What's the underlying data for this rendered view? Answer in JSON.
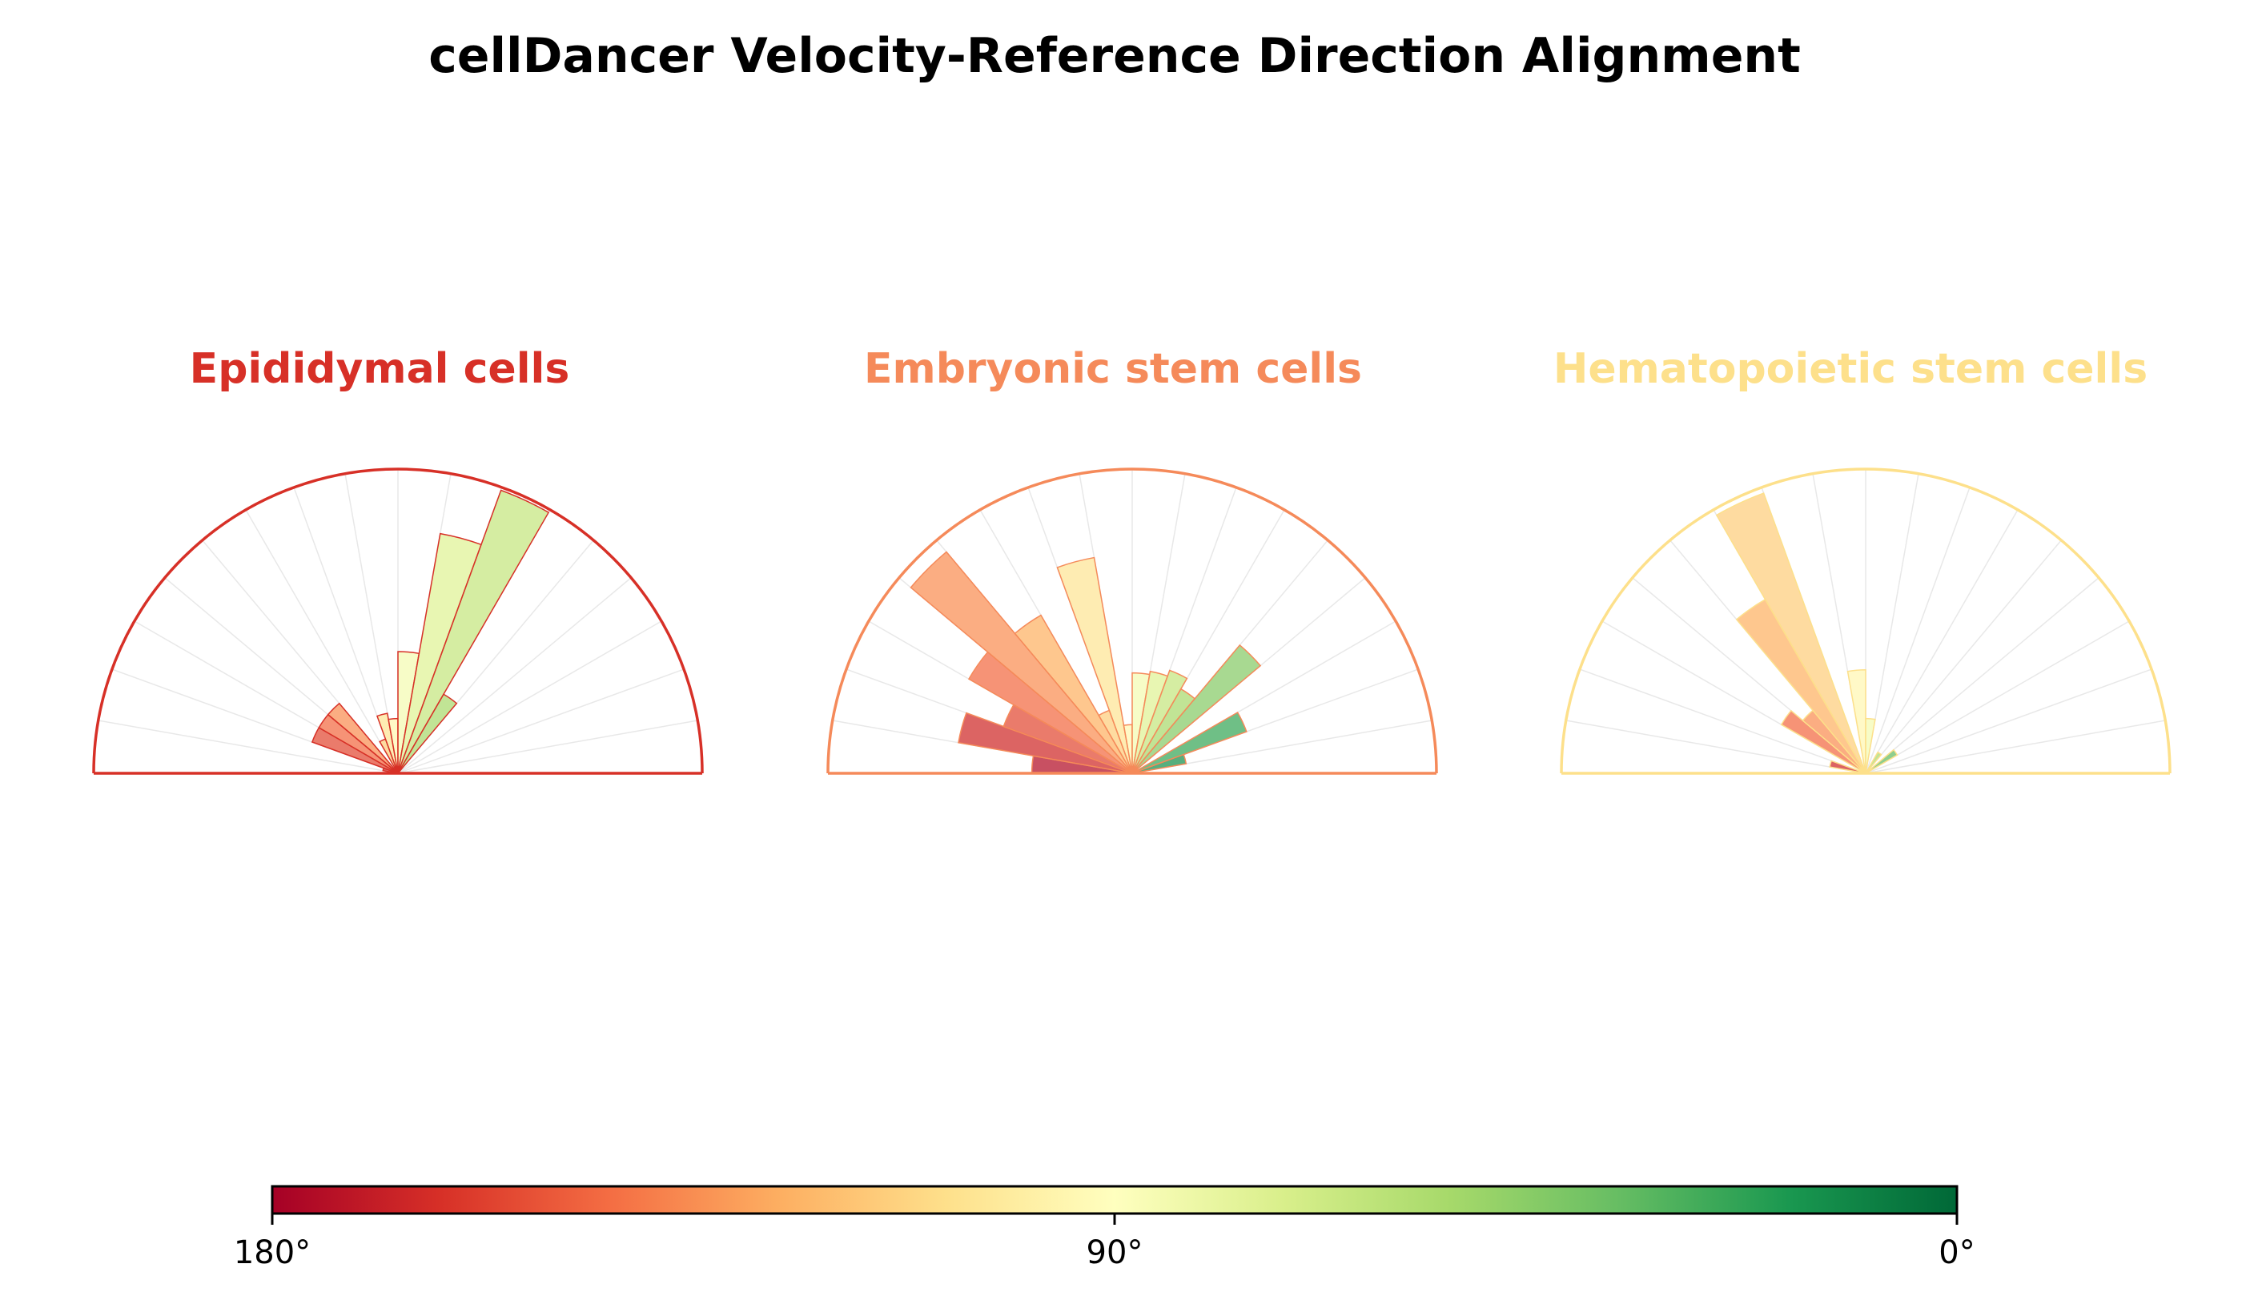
{
  "chart_data": {
    "type": "polar-bar",
    "title": "cellDancer Velocity-Reference Direction Alignment",
    "colormap": "RdYlGn",
    "colorbar": {
      "range_deg": [
        180,
        0
      ],
      "ticks": [
        {
          "value": 180,
          "label": "180°"
        },
        {
          "value": 90,
          "label": "90°"
        },
        {
          "value": 0,
          "label": "0°"
        }
      ],
      "stops": [
        "#a50026",
        "#d73027",
        "#f46d43",
        "#fdae61",
        "#fee08b",
        "#ffffbf",
        "#d9ef8b",
        "#a6d96a",
        "#66bd63",
        "#1a9850",
        "#006837"
      ]
    },
    "bin_width_deg": 10,
    "radial_max": 1.0,
    "panels": [
      {
        "name": "Epididymal cells",
        "color": "#d73027",
        "bins": [
          {
            "angle": 165,
            "r": 0.05
          },
          {
            "angle": 155,
            "r": 0.3
          },
          {
            "angle": 145,
            "r": 0.3
          },
          {
            "angle": 135,
            "r": 0.3
          },
          {
            "angle": 115,
            "r": 0.12
          },
          {
            "angle": 105,
            "r": 0.2
          },
          {
            "angle": 95,
            "r": 0.18
          },
          {
            "angle": 85,
            "r": 0.4
          },
          {
            "angle": 75,
            "r": 0.8
          },
          {
            "angle": 65,
            "r": 0.99
          },
          {
            "angle": 55,
            "r": 0.3
          }
        ]
      },
      {
        "name": "Embryonic stem cells",
        "color": "#f58a5a",
        "bins": [
          {
            "angle": 175,
            "r": 0.33
          },
          {
            "angle": 165,
            "r": 0.58
          },
          {
            "angle": 155,
            "r": 0.45
          },
          {
            "angle": 145,
            "r": 0.62
          },
          {
            "angle": 135,
            "r": 0.95
          },
          {
            "angle": 125,
            "r": 0.6
          },
          {
            "angle": 115,
            "r": 0.22
          },
          {
            "angle": 105,
            "r": 0.72
          },
          {
            "angle": 95,
            "r": 0.16
          },
          {
            "angle": 85,
            "r": 0.33
          },
          {
            "angle": 75,
            "r": 0.34
          },
          {
            "angle": 65,
            "r": 0.36
          },
          {
            "angle": 55,
            "r": 0.32
          },
          {
            "angle": 45,
            "r": 0.55
          },
          {
            "angle": 25,
            "r": 0.4
          },
          {
            "angle": 15,
            "r": 0.18
          }
        ]
      },
      {
        "name": "Hematopoietic stem cells",
        "color": "#fde08b",
        "bins": [
          {
            "angle": 165,
            "r": 0.12
          },
          {
            "angle": 145,
            "r": 0.32
          },
          {
            "angle": 135,
            "r": 0.27
          },
          {
            "angle": 125,
            "r": 0.66
          },
          {
            "angle": 115,
            "r": 0.98
          },
          {
            "angle": 95,
            "r": 0.34
          },
          {
            "angle": 85,
            "r": 0.18
          },
          {
            "angle": 55,
            "r": 0.08
          },
          {
            "angle": 35,
            "r": 0.12
          }
        ]
      }
    ]
  }
}
